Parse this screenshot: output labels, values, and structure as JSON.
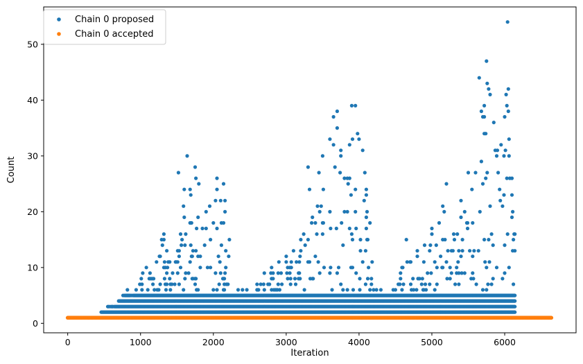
{
  "chart_data": {
    "type": "scatter",
    "title": "",
    "xlabel": "Iteration",
    "ylabel": "Count",
    "xlim": [
      -330,
      6980
    ],
    "ylim": [
      -1.7,
      56.7
    ],
    "x_ticks": [
      0,
      1000,
      2000,
      3000,
      4000,
      5000,
      6000
    ],
    "y_ticks": [
      0,
      10,
      20,
      30,
      40,
      50
    ],
    "grid": false,
    "legend_position": "upper-left",
    "series": [
      {
        "name": "Chain 0 proposed",
        "color": "#1f77b4",
        "marker": "dot",
        "profile_note_points": [
          [
            470,
            2
          ],
          [
            520,
            2
          ],
          [
            580,
            3
          ],
          [
            650,
            3
          ],
          [
            700,
            4
          ],
          [
            760,
            5
          ],
          [
            820,
            6
          ],
          [
            880,
            5
          ],
          [
            940,
            6
          ],
          [
            990,
            7
          ],
          [
            1030,
            9
          ],
          [
            1080,
            10
          ],
          [
            1130,
            9
          ],
          [
            1180,
            8
          ],
          [
            1220,
            11
          ],
          [
            1270,
            12
          ],
          [
            1290,
            15
          ],
          [
            1320,
            16
          ],
          [
            1360,
            13
          ],
          [
            1400,
            11
          ],
          [
            1440,
            9
          ],
          [
            1480,
            11
          ],
          [
            1520,
            27
          ],
          [
            1560,
            14
          ],
          [
            1600,
            19
          ],
          [
            1640,
            30
          ],
          [
            1700,
            18
          ],
          [
            1750,
            28
          ],
          [
            1800,
            25
          ],
          [
            1850,
            17
          ],
          [
            1900,
            20
          ],
          [
            1950,
            21
          ],
          [
            2000,
            18
          ],
          [
            2050,
            26
          ],
          [
            2100,
            22
          ],
          [
            2140,
            25
          ],
          [
            2160,
            20
          ],
          [
            2200,
            7
          ],
          [
            2240,
            5
          ],
          [
            2300,
            4
          ],
          [
            2400,
            6
          ],
          [
            2500,
            5
          ],
          [
            2600,
            7
          ],
          [
            2700,
            9
          ],
          [
            2800,
            10
          ],
          [
            2900,
            11
          ],
          [
            3000,
            12
          ],
          [
            3050,
            10
          ],
          [
            3100,
            13
          ],
          [
            3200,
            15
          ],
          [
            3300,
            28
          ],
          [
            3320,
            24
          ],
          [
            3400,
            18
          ],
          [
            3450,
            27
          ],
          [
            3500,
            30
          ],
          [
            3600,
            33
          ],
          [
            3650,
            37
          ],
          [
            3700,
            38
          ],
          [
            3750,
            31
          ],
          [
            3800,
            26
          ],
          [
            3850,
            25
          ],
          [
            3900,
            39
          ],
          [
            3950,
            39
          ],
          [
            3980,
            34
          ],
          [
            4000,
            33
          ],
          [
            4050,
            31
          ],
          [
            4080,
            27
          ],
          [
            4100,
            19
          ],
          [
            4150,
            6
          ],
          [
            4200,
            5
          ],
          [
            4300,
            6
          ],
          [
            4400,
            5
          ],
          [
            4500,
            6
          ],
          [
            4600,
            10
          ],
          [
            4650,
            15
          ],
          [
            4700,
            11
          ],
          [
            4800,
            13
          ],
          [
            4900,
            14
          ],
          [
            5000,
            17
          ],
          [
            5100,
            18
          ],
          [
            5150,
            21
          ],
          [
            5200,
            25
          ],
          [
            5300,
            16
          ],
          [
            5400,
            22
          ],
          [
            5450,
            20
          ],
          [
            5500,
            27
          ],
          [
            5550,
            24
          ],
          [
            5600,
            27
          ],
          [
            5650,
            44
          ],
          [
            5700,
            37
          ],
          [
            5720,
            39
          ],
          [
            5750,
            47
          ],
          [
            5780,
            42
          ],
          [
            5800,
            41
          ],
          [
            5850,
            36
          ],
          [
            5900,
            31
          ],
          [
            5950,
            32
          ],
          [
            6000,
            37
          ],
          [
            6020,
            41
          ],
          [
            6040,
            54
          ],
          [
            6060,
            33
          ],
          [
            6100,
            23
          ],
          [
            6120,
            15
          ],
          [
            6140,
            13
          ]
        ]
      },
      {
        "name": "Chain 0 accepted",
        "color": "#ff7f0e",
        "marker": "dot",
        "profile_note_constant_y": 1,
        "x_range": [
          0,
          6640
        ]
      }
    ]
  }
}
